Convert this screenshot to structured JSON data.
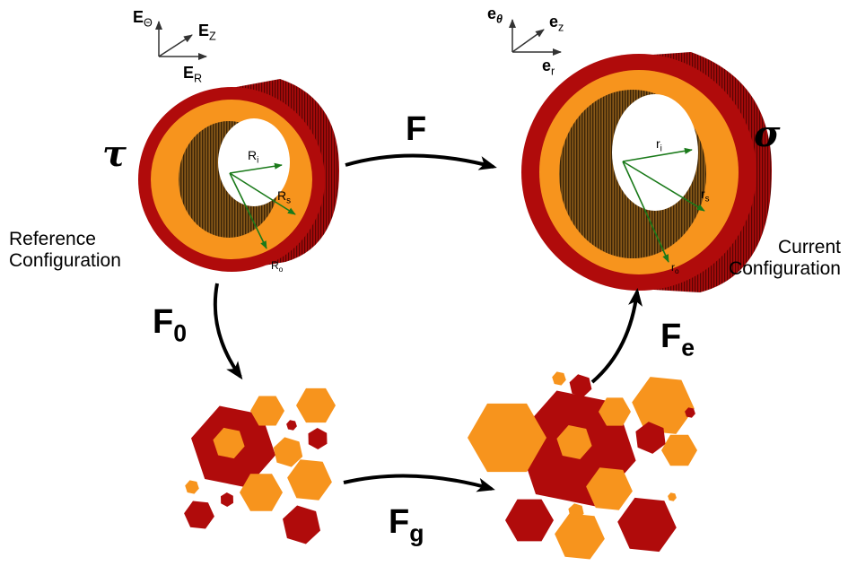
{
  "colors": {
    "tube_outer": "#b00b0b",
    "tube_inner": "#f7941d",
    "lumen_wall": "#7a4a10",
    "vector": "#1a7a1a",
    "arrow": "#000000",
    "cell_red": "#b00b0b",
    "cell_orange": "#f7941d"
  },
  "reference": {
    "symbol": "τ",
    "caption_line1": "Reference",
    "caption_line2": "Configuration",
    "axes": {
      "e_theta": {
        "base": "E",
        "sub": "Θ"
      },
      "e_z": {
        "base": "E",
        "sub": "Z"
      },
      "e_r": {
        "base": "E",
        "sub": "R"
      }
    },
    "radii": {
      "inner": {
        "base": "R",
        "sub": "i"
      },
      "mid": {
        "base": "R",
        "sub": "s"
      },
      "outer": {
        "base": "R",
        "sub": "o"
      }
    }
  },
  "current": {
    "symbol": "σ",
    "caption_line1": "Current",
    "caption_line2": "Configuration",
    "axes": {
      "e_theta": {
        "base": "e",
        "sub": "θ"
      },
      "e_z": {
        "base": "e",
        "sub": "z"
      },
      "e_r": {
        "base": "e",
        "sub": "r"
      }
    },
    "radii": {
      "inner": {
        "base": "r",
        "sub": "i"
      },
      "mid": {
        "base": "r",
        "sub": "s"
      },
      "outer": {
        "base": "r",
        "sub": "o"
      }
    }
  },
  "maps": {
    "F": {
      "base": "F",
      "sub": ""
    },
    "F0": {
      "base": "F",
      "sub": "0"
    },
    "Fg": {
      "base": "F",
      "sub": "g"
    },
    "Fe": {
      "base": "F",
      "sub": "e"
    }
  },
  "icons": {
    "reference_tube": "tube-icon",
    "current_tube": "tube-icon",
    "split_cells": "hexagon-cluster-icon",
    "grown_cells": "hexagon-cluster-icon"
  }
}
